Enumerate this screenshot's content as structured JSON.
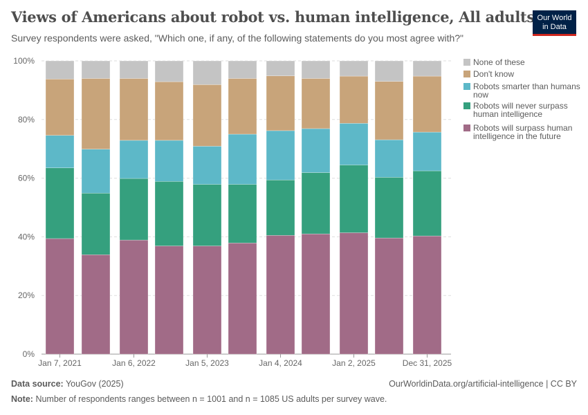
{
  "header": {
    "title": "Views of Americans about robot vs. human intelligence, All adults",
    "subtitle": "Survey respondents were asked, \"Which one, if any, of the following statements do you most agree with?\"",
    "logo_text": "Our World in Data"
  },
  "footer": {
    "source_label": "Data source:",
    "source": "YouGov (2025)",
    "url": "OurWorldinData.org/artificial-intelligence | CC BY",
    "note_label": "Note:",
    "note": "Number of respondents ranges between n = 1001 and n = 1085 US adults per survey wave."
  },
  "chart_data": {
    "type": "bar",
    "stacked": true,
    "title": "Views of Americans about robot vs. human intelligence, All adults",
    "x_tick_labels": [
      "Jan 7, 2021",
      "",
      "Jan 6, 2022",
      "",
      "Jan 5, 2023",
      "",
      "Jan 4, 2024",
      "",
      "Jan 2, 2025",
      "",
      "Dec 31, 2025"
    ],
    "y_ticks": [
      "0%",
      "20%",
      "40%",
      "60%",
      "80%",
      "100%"
    ],
    "ylim": [
      0,
      100
    ],
    "grid": true,
    "legend_placement": "right",
    "series": [
      {
        "name": "Robots will surpass human intelligence in the future",
        "color": "#a16b87",
        "values": [
          39.4,
          33.9,
          38.9,
          36.9,
          36.9,
          37.9,
          40.5,
          41.0,
          41.4,
          39.6,
          40.3
        ]
      },
      {
        "name": "Robots will never surpass human intelligence",
        "color": "#35a07e",
        "values": [
          24.1,
          21.0,
          21.0,
          22.0,
          21.0,
          20.0,
          18.9,
          20.9,
          23.1,
          20.7,
          22.2
        ]
      },
      {
        "name": "Robots smarter than humans now",
        "color": "#5db8c8",
        "values": [
          11.1,
          15.0,
          13.0,
          14.0,
          13.0,
          17.1,
          16.8,
          15.0,
          14.2,
          12.8,
          13.2
        ]
      },
      {
        "name": "Don't know",
        "color": "#c8a47a",
        "values": [
          19.2,
          24.1,
          21.1,
          20.0,
          21.0,
          19.0,
          18.7,
          17.1,
          16.1,
          19.9,
          19.1
        ]
      },
      {
        "name": "None of these",
        "color": "#c4c4c4",
        "values": [
          6.2,
          6.0,
          6.0,
          7.1,
          8.1,
          6.0,
          5.1,
          6.0,
          5.2,
          7.0,
          5.2
        ]
      }
    ]
  }
}
